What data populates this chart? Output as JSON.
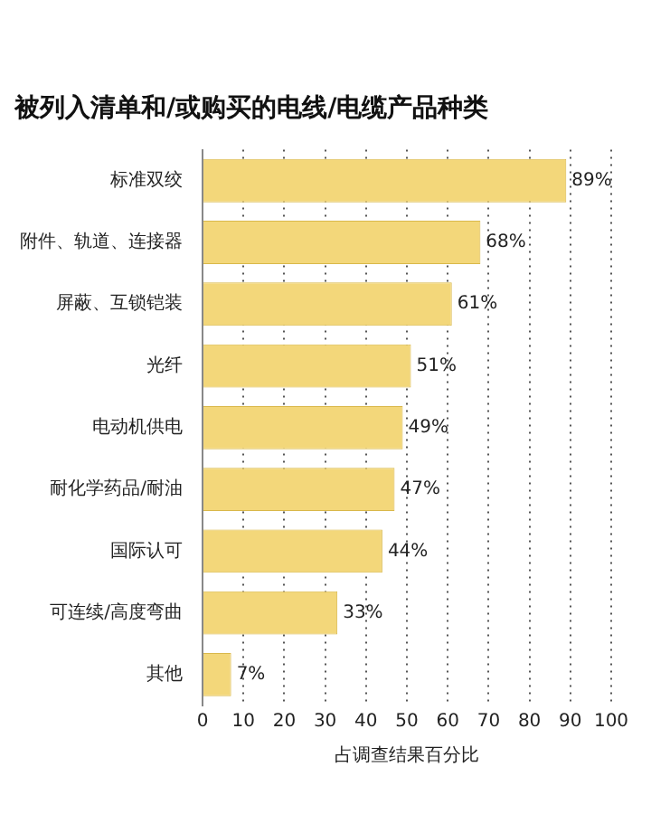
{
  "chart_data": {
    "type": "bar",
    "orientation": "horizontal",
    "title": "被列入清单和/或购买的电线/电缆产品种类",
    "xlabel": "占调查结果百分比",
    "categories": [
      "标准双绞",
      "附件、轨道、连接器",
      "屏蔽、互锁铠装",
      "光纤",
      "电动机供电",
      "耐化学药品/耐油",
      "国际认可",
      "可连续/高度弯曲",
      "其他"
    ],
    "values": [
      89,
      68,
      61,
      51,
      49,
      47,
      44,
      33,
      7
    ],
    "value_labels": [
      "89%",
      "68%",
      "61%",
      "51%",
      "49%",
      "47%",
      "44%",
      "33%",
      "7%"
    ],
    "color": "#f3d77a",
    "xlim": [
      0,
      100
    ],
    "xticks": [
      0,
      10,
      20,
      30,
      40,
      50,
      60,
      70,
      80,
      90,
      100
    ],
    "grid": "x",
    "line_style": "dotted"
  }
}
